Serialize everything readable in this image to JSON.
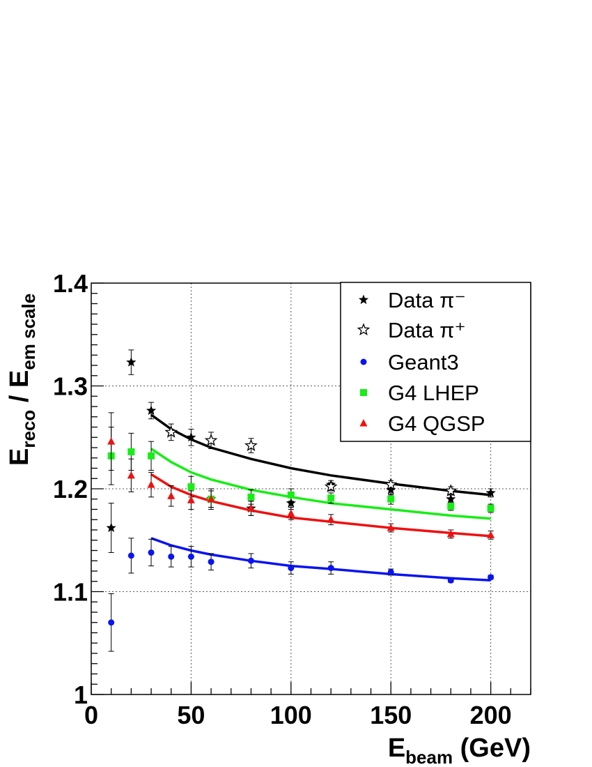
{
  "chart_data": {
    "type": "scatter",
    "xlim": [
      0,
      220
    ],
    "ylim": [
      1.0,
      1.4
    ],
    "x_ticks": [
      0,
      50,
      100,
      150,
      200
    ],
    "y_ticks": [
      1,
      1.1,
      1.2,
      1.3,
      1.4
    ],
    "x_tick_labels": [
      "0",
      "50",
      "100",
      "150",
      "200"
    ],
    "y_tick_labels": [
      "1",
      "1.1",
      "1.2",
      "1.3",
      "1.4"
    ],
    "grid": true,
    "legend_position": "top-right",
    "xlabel": {
      "main": "E",
      "sub": "beam",
      "rest": " (GeV)"
    },
    "ylabel": {
      "main1": "E",
      "sub1": "reco",
      "sep": " / ",
      "main2": "E",
      "sub2": "em scale"
    },
    "series": [
      {
        "name": "Data π⁻",
        "marker": "star-filled",
        "color": "#000000",
        "points": [
          {
            "x": 10,
            "y": 1.162,
            "err": 0.024
          },
          {
            "x": 20,
            "y": 1.323,
            "err": 0.012
          },
          {
            "x": 30,
            "y": 1.276,
            "err": 0.008
          },
          {
            "x": 50,
            "y": 1.25,
            "err": 0.008
          },
          {
            "x": 60,
            "y": 1.19,
            "err": 0.01
          },
          {
            "x": 80,
            "y": 1.181,
            "err": 0.007
          },
          {
            "x": 100,
            "y": 1.186,
            "err": 0.006
          },
          {
            "x": 120,
            "y": 1.204,
            "err": 0.004
          },
          {
            "x": 150,
            "y": 1.199,
            "err": 0.005
          },
          {
            "x": 180,
            "y": 1.19,
            "err": 0.004
          },
          {
            "x": 200,
            "y": 1.196,
            "err": 0.004
          }
        ]
      },
      {
        "name": "Data π⁺",
        "marker": "star-open",
        "color": "#000000",
        "points": [
          {
            "x": 40,
            "y": 1.255,
            "err": 0.008
          },
          {
            "x": 60,
            "y": 1.247,
            "err": 0.008
          },
          {
            "x": 80,
            "y": 1.242,
            "err": 0.007
          },
          {
            "x": 120,
            "y": 1.202,
            "err": 0.004
          },
          {
            "x": 150,
            "y": 1.204,
            "err": 0.004
          },
          {
            "x": 180,
            "y": 1.198,
            "err": 0.004
          }
        ]
      },
      {
        "name": "Geant3",
        "marker": "circle",
        "color": "#0a14f0",
        "points": [
          {
            "x": 10,
            "y": 1.07,
            "err": 0.028
          },
          {
            "x": 20,
            "y": 1.135,
            "err": 0.017
          },
          {
            "x": 30,
            "y": 1.138,
            "err": 0.013
          },
          {
            "x": 40,
            "y": 1.134,
            "err": 0.01
          },
          {
            "x": 50,
            "y": 1.134,
            "err": 0.01
          },
          {
            "x": 60,
            "y": 1.129,
            "err": 0.008
          },
          {
            "x": 80,
            "y": 1.13,
            "err": 0.007
          },
          {
            "x": 100,
            "y": 1.123,
            "err": 0.006
          },
          {
            "x": 120,
            "y": 1.123,
            "err": 0.006
          },
          {
            "x": 150,
            "y": 1.119,
            "err": 0.003
          },
          {
            "x": 180,
            "y": 1.111,
            "err": 0.002
          },
          {
            "x": 200,
            "y": 1.114,
            "err": 0.002
          }
        ]
      },
      {
        "name": "G4 LHEP",
        "marker": "square",
        "color": "#17ee17",
        "points": [
          {
            "x": 10,
            "y": 1.232,
            "err": 0.028
          },
          {
            "x": 20,
            "y": 1.236,
            "err": 0.018
          },
          {
            "x": 30,
            "y": 1.232,
            "err": 0.014
          },
          {
            "x": 50,
            "y": 1.202,
            "err": 0.01
          },
          {
            "x": 60,
            "y": 1.19,
            "err": 0.008
          },
          {
            "x": 80,
            "y": 1.192,
            "err": 0.007
          },
          {
            "x": 100,
            "y": 1.194,
            "err": 0.006
          },
          {
            "x": 120,
            "y": 1.191,
            "err": 0.005
          },
          {
            "x": 150,
            "y": 1.19,
            "err": 0.005
          },
          {
            "x": 180,
            "y": 1.183,
            "err": 0.004
          },
          {
            "x": 200,
            "y": 1.181,
            "err": 0.004
          }
        ]
      },
      {
        "name": "G4 QGSP",
        "marker": "triangle",
        "color": "#ee1111",
        "points": [
          {
            "x": 10,
            "y": 1.246,
            "err": 0.028
          },
          {
            "x": 20,
            "y": 1.213,
            "err": 0.016
          },
          {
            "x": 30,
            "y": 1.204,
            "err": 0.012
          },
          {
            "x": 40,
            "y": 1.193,
            "err": 0.01
          },
          {
            "x": 50,
            "y": 1.189,
            "err": 0.009
          },
          {
            "x": 60,
            "y": 1.19,
            "err": 0.008
          },
          {
            "x": 80,
            "y": 1.181,
            "err": 0.007
          },
          {
            "x": 100,
            "y": 1.176,
            "err": 0.006
          },
          {
            "x": 120,
            "y": 1.17,
            "err": 0.005
          },
          {
            "x": 150,
            "y": 1.162,
            "err": 0.004
          },
          {
            "x": 180,
            "y": 1.156,
            "err": 0.004
          },
          {
            "x": 200,
            "y": 1.155,
            "err": 0.004
          }
        ]
      }
    ],
    "fits": [
      {
        "color": "#000000",
        "x": [
          30,
          40,
          50,
          60,
          80,
          100,
          120,
          150,
          180,
          200
        ],
        "y": [
          1.272,
          1.258,
          1.248,
          1.24,
          1.229,
          1.22,
          1.213,
          1.205,
          1.198,
          1.194
        ]
      },
      {
        "color": "#17ee17",
        "x": [
          30,
          40,
          50,
          60,
          80,
          100,
          120,
          150,
          180,
          200
        ],
        "y": [
          1.239,
          1.226,
          1.216,
          1.209,
          1.199,
          1.192,
          1.186,
          1.18,
          1.174,
          1.171
        ]
      },
      {
        "color": "#ee1111",
        "x": [
          30,
          40,
          50,
          60,
          80,
          100,
          120,
          150,
          180,
          200
        ],
        "y": [
          1.214,
          1.202,
          1.194,
          1.188,
          1.179,
          1.172,
          1.168,
          1.162,
          1.157,
          1.154
        ]
      },
      {
        "color": "#0a14f0",
        "x": [
          30,
          40,
          50,
          60,
          80,
          100,
          120,
          150,
          180,
          200
        ],
        "y": [
          1.152,
          1.145,
          1.14,
          1.136,
          1.13,
          1.125,
          1.122,
          1.117,
          1.113,
          1.111
        ]
      }
    ]
  }
}
